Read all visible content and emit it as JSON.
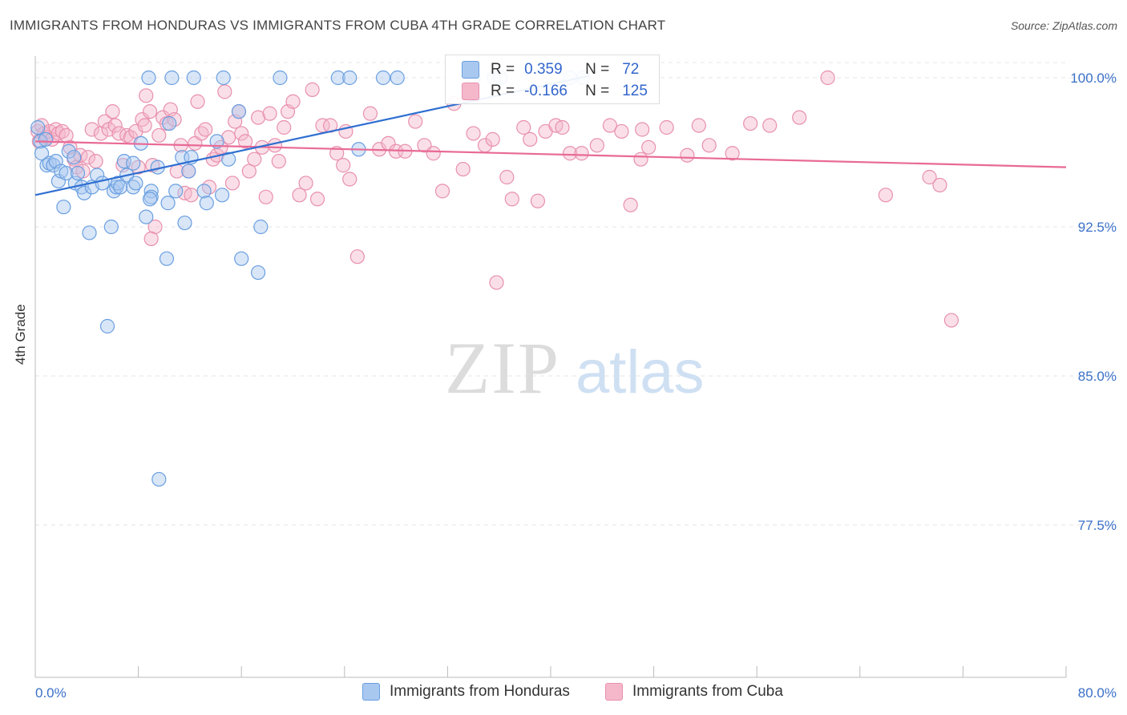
{
  "title": "IMMIGRANTS FROM HONDURAS VS IMMIGRANTS FROM CUBA 4TH GRADE CORRELATION CHART",
  "source": "Source: ZipAtlas.com",
  "watermark": {
    "zip": "ZIP",
    "atlas": "atlas"
  },
  "legend": {
    "rows": [
      {
        "r_label": "R =",
        "r_value": "0.359",
        "n_label": "N =",
        "n_value": "72",
        "color": "#a9c8f0"
      },
      {
        "r_label": "R =",
        "r_value": "-0.166",
        "n_label": "N =",
        "n_value": "125",
        "color": "#f5b8cb"
      }
    ]
  },
  "bottom_legend": [
    "Immigrants from Honduras",
    "Immigrants from Cuba"
  ],
  "colors": {
    "honduras_fill": "#a9c8f0",
    "honduras_stroke": "#6a9fe0",
    "honduras_line": "#2f6fd1",
    "cuba_fill": "#f5b8cb",
    "cuba_stroke": "#e890ad",
    "cuba_line": "#e86a96",
    "axis_label": "#3a70c8",
    "grid": "#e4e4e4"
  },
  "chart_data": {
    "type": "scatter",
    "title": "IMMIGRANTS FROM HONDURAS VS IMMIGRANTS FROM CUBA 4TH GRADE CORRELATION CHART",
    "xlabel": "",
    "ylabel": "4th Grade",
    "xlim": [
      0,
      80
    ],
    "ylim": [
      70.0,
      101.0
    ],
    "x_tick_labels": [
      "0.0%",
      "80.0%"
    ],
    "y_ticks": [
      77.5,
      85.0,
      92.5,
      100.0
    ],
    "y_tick_labels": [
      "77.5%",
      "85.0%",
      "92.5%",
      "100.0%"
    ],
    "grid": true,
    "series": [
      {
        "name": "Immigrants from Honduras",
        "trend": {
          "x": [
            0.0,
            43.0
          ],
          "y": [
            94.1,
            100.1
          ]
        },
        "points": [
          [
            0.2,
            97.5
          ],
          [
            0.4,
            96.8
          ],
          [
            0.5,
            96.2
          ],
          [
            0.8,
            96.9
          ],
          [
            0.9,
            95.6
          ],
          [
            1.1,
            95.7
          ],
          [
            1.4,
            95.6
          ],
          [
            1.6,
            95.8
          ],
          [
            1.8,
            94.8
          ],
          [
            2.0,
            95.3
          ],
          [
            2.2,
            93.5
          ],
          [
            2.4,
            95.2
          ],
          [
            2.6,
            96.3
          ],
          [
            3.0,
            96.0
          ],
          [
            3.1,
            94.7
          ],
          [
            3.3,
            95.2
          ],
          [
            3.6,
            94.5
          ],
          [
            3.8,
            94.2
          ],
          [
            4.2,
            92.2
          ],
          [
            4.4,
            94.5
          ],
          [
            4.8,
            95.1
          ],
          [
            5.2,
            94.7
          ],
          [
            5.6,
            87.5
          ],
          [
            5.9,
            92.5
          ],
          [
            6.1,
            94.3
          ],
          [
            6.3,
            94.5
          ],
          [
            6.4,
            94.7
          ],
          [
            6.6,
            94.5
          ],
          [
            6.9,
            95.8
          ],
          [
            7.1,
            95.1
          ],
          [
            7.6,
            95.7
          ],
          [
            7.6,
            94.5
          ],
          [
            7.8,
            94.7
          ],
          [
            8.2,
            96.7
          ],
          [
            8.6,
            93.0
          ],
          [
            9.0,
            94.3
          ],
          [
            9.0,
            94.0
          ],
          [
            9.5,
            95.5
          ],
          [
            9.6,
            79.8
          ],
          [
            10.2,
            90.9
          ],
          [
            10.3,
            93.7
          ],
          [
            10.4,
            97.7
          ],
          [
            10.9,
            94.3
          ],
          [
            11.4,
            96.0
          ],
          [
            11.6,
            92.7
          ],
          [
            11.9,
            95.3
          ],
          [
            12.1,
            96.0
          ],
          [
            13.1,
            94.3
          ],
          [
            13.3,
            93.7
          ],
          [
            14.1,
            96.8
          ],
          [
            14.5,
            94.1
          ],
          [
            15.0,
            95.9
          ],
          [
            15.8,
            98.3
          ],
          [
            16.0,
            90.9
          ],
          [
            17.3,
            90.2
          ],
          [
            19.0,
            100.0
          ],
          [
            17.5,
            92.5
          ],
          [
            8.8,
            100.0
          ],
          [
            10.6,
            100.0
          ],
          [
            12.3,
            100.0
          ],
          [
            14.6,
            100.0
          ],
          [
            23.5,
            100.0
          ],
          [
            24.4,
            100.0
          ],
          [
            27.0,
            100.0
          ],
          [
            28.1,
            100.0
          ],
          [
            25.1,
            96.4
          ],
          [
            34.0,
            100.0
          ],
          [
            35.6,
            100.0
          ],
          [
            36.1,
            100.0
          ],
          [
            41.5,
            100.0
          ],
          [
            42.5,
            100.0
          ],
          [
            8.9,
            93.9
          ]
        ]
      },
      {
        "name": "Immigrants from Cuba",
        "trend": {
          "x": [
            0.0,
            80.0
          ],
          "y": [
            96.8,
            95.5
          ]
        },
        "points": [
          [
            0.2,
            97.3
          ],
          [
            0.3,
            96.8
          ],
          [
            0.5,
            97.6
          ],
          [
            0.7,
            97.2
          ],
          [
            0.9,
            97.0
          ],
          [
            1.1,
            97.3
          ],
          [
            1.3,
            96.9
          ],
          [
            1.6,
            97.4
          ],
          [
            1.8,
            97.2
          ],
          [
            2.1,
            97.3
          ],
          [
            2.4,
            97.1
          ],
          [
            2.7,
            96.5
          ],
          [
            3.0,
            95.9
          ],
          [
            3.2,
            95.5
          ],
          [
            3.5,
            96.1
          ],
          [
            3.7,
            95.3
          ],
          [
            4.1,
            96.0
          ],
          [
            4.4,
            97.4
          ],
          [
            4.7,
            95.8
          ],
          [
            5.1,
            97.2
          ],
          [
            5.4,
            97.8
          ],
          [
            5.7,
            97.4
          ],
          [
            6.0,
            98.3
          ],
          [
            6.2,
            97.6
          ],
          [
            6.5,
            97.2
          ],
          [
            6.8,
            95.6
          ],
          [
            7.1,
            97.1
          ],
          [
            7.4,
            97.0
          ],
          [
            7.8,
            97.3
          ],
          [
            8.0,
            95.5
          ],
          [
            8.3,
            97.9
          ],
          [
            8.6,
            99.1
          ],
          [
            8.9,
            98.3
          ],
          [
            9.1,
            95.6
          ],
          [
            9.3,
            92.5
          ],
          [
            9.0,
            91.9
          ],
          [
            9.6,
            97.1
          ],
          [
            9.9,
            98.0
          ],
          [
            10.2,
            97.7
          ],
          [
            10.5,
            98.4
          ],
          [
            10.8,
            97.9
          ],
          [
            11.0,
            95.3
          ],
          [
            11.3,
            96.6
          ],
          [
            11.6,
            94.2
          ],
          [
            11.9,
            95.3
          ],
          [
            12.1,
            94.1
          ],
          [
            12.4,
            96.7
          ],
          [
            12.6,
            98.8
          ],
          [
            12.9,
            97.2
          ],
          [
            13.2,
            97.4
          ],
          [
            13.5,
            94.5
          ],
          [
            13.8,
            95.9
          ],
          [
            14.1,
            96.1
          ],
          [
            14.4,
            96.5
          ],
          [
            14.7,
            99.3
          ],
          [
            15.0,
            97.0
          ],
          [
            15.3,
            94.7
          ],
          [
            15.5,
            97.8
          ],
          [
            15.8,
            98.3
          ],
          [
            16.0,
            97.2
          ],
          [
            16.3,
            96.8
          ],
          [
            16.6,
            95.3
          ],
          [
            17.0,
            95.9
          ],
          [
            17.3,
            98.0
          ],
          [
            17.6,
            96.5
          ],
          [
            17.9,
            94.0
          ],
          [
            18.2,
            98.2
          ],
          [
            18.6,
            96.6
          ],
          [
            18.9,
            95.8
          ],
          [
            19.3,
            97.5
          ],
          [
            19.6,
            98.3
          ],
          [
            20.0,
            98.8
          ],
          [
            20.5,
            94.1
          ],
          [
            21.0,
            94.7
          ],
          [
            21.5,
            99.4
          ],
          [
            21.9,
            93.9
          ],
          [
            22.3,
            97.6
          ],
          [
            22.9,
            97.6
          ],
          [
            23.4,
            96.2
          ],
          [
            23.9,
            95.6
          ],
          [
            24.4,
            94.9
          ],
          [
            25.0,
            91.0
          ],
          [
            26.0,
            98.2
          ],
          [
            26.7,
            96.4
          ],
          [
            27.4,
            96.7
          ],
          [
            28.0,
            96.3
          ],
          [
            28.7,
            96.3
          ],
          [
            29.5,
            97.8
          ],
          [
            30.2,
            96.6
          ],
          [
            30.9,
            96.2
          ],
          [
            31.6,
            94.3
          ],
          [
            32.5,
            98.7
          ],
          [
            33.2,
            95.4
          ],
          [
            34.0,
            97.2
          ],
          [
            34.9,
            96.6
          ],
          [
            35.5,
            96.9
          ],
          [
            35.8,
            89.7
          ],
          [
            36.6,
            95.0
          ],
          [
            37.0,
            93.9
          ],
          [
            37.9,
            97.5
          ],
          [
            38.4,
            96.9
          ],
          [
            39.0,
            93.8
          ],
          [
            39.6,
            97.3
          ],
          [
            40.4,
            97.6
          ],
          [
            40.9,
            97.5
          ],
          [
            41.5,
            96.2
          ],
          [
            42.4,
            96.2
          ],
          [
            43.6,
            96.6
          ],
          [
            44.6,
            97.6
          ],
          [
            45.5,
            97.3
          ],
          [
            46.2,
            93.6
          ],
          [
            47.1,
            97.4
          ],
          [
            47.6,
            96.5
          ],
          [
            49.0,
            97.5
          ],
          [
            50.6,
            96.1
          ],
          [
            51.5,
            97.6
          ],
          [
            52.3,
            96.6
          ],
          [
            54.1,
            96.2
          ],
          [
            55.5,
            97.7
          ],
          [
            57.0,
            97.6
          ],
          [
            59.3,
            98.0
          ],
          [
            61.5,
            100.0
          ],
          [
            66.0,
            94.1
          ],
          [
            69.4,
            95.0
          ],
          [
            70.2,
            94.6
          ],
          [
            71.1,
            87.8
          ],
          [
            8.5,
            97.6
          ],
          [
            24.1,
            97.3
          ],
          [
            47.0,
            95.9
          ]
        ]
      }
    ]
  }
}
